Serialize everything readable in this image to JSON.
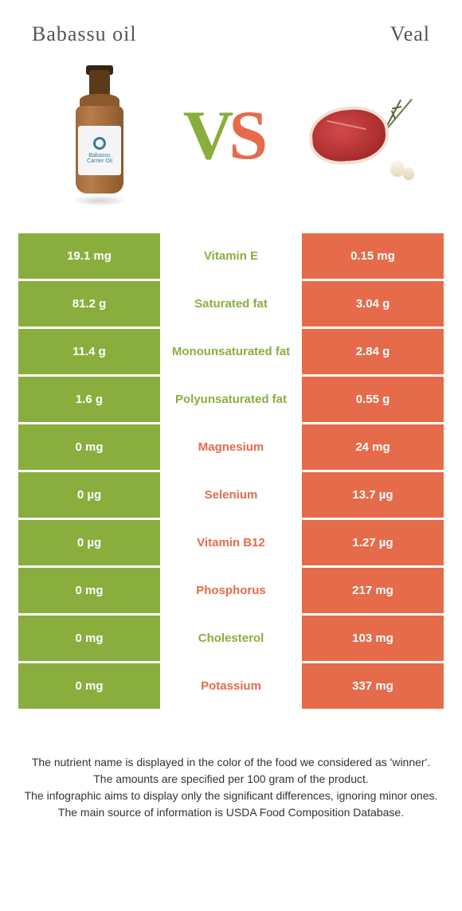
{
  "colors": {
    "green": "#8aae3e",
    "orange": "#e56b4a"
  },
  "header": {
    "left_title": "Babassu oil",
    "right_title": "Veal"
  },
  "hero": {
    "bottle_label_line1": "Babassu",
    "bottle_label_line2": "Carrier Oil",
    "vs_v": "V",
    "vs_s": "S"
  },
  "rows": [
    {
      "left": "19.1 mg",
      "label": "Vitamin E",
      "right": "0.15 mg",
      "winner": "green"
    },
    {
      "left": "81.2 g",
      "label": "Saturated fat",
      "right": "3.04 g",
      "winner": "green"
    },
    {
      "left": "11.4 g",
      "label": "Monounsaturated fat",
      "right": "2.84 g",
      "winner": "green"
    },
    {
      "left": "1.6 g",
      "label": "Polyunsaturated fat",
      "right": "0.55 g",
      "winner": "green"
    },
    {
      "left": "0 mg",
      "label": "Magnesium",
      "right": "24 mg",
      "winner": "orange"
    },
    {
      "left": "0 µg",
      "label": "Selenium",
      "right": "13.7 µg",
      "winner": "orange"
    },
    {
      "left": "0 µg",
      "label": "Vitamin B12",
      "right": "1.27 µg",
      "winner": "orange"
    },
    {
      "left": "0 mg",
      "label": "Phosphorus",
      "right": "217 mg",
      "winner": "orange"
    },
    {
      "left": "0 mg",
      "label": "Cholesterol",
      "right": "103 mg",
      "winner": "green"
    },
    {
      "left": "0 mg",
      "label": "Potassium",
      "right": "337 mg",
      "winner": "orange"
    }
  ],
  "footer": {
    "line1": "The nutrient name is displayed in the color of the food we considered as 'winner'.",
    "line2": "The amounts are specified per 100 gram of the product.",
    "line3": "The infographic aims to display only the significant differences, ignoring minor ones.",
    "line4": "The main source of information is USDA Food Composition Database."
  }
}
